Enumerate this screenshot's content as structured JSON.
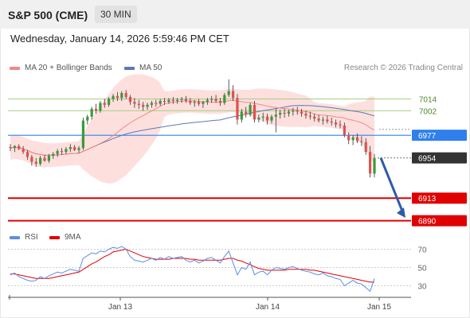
{
  "header": {
    "title": "S&P 500 (CME)",
    "timeframe": "30 MIN",
    "timestamp": "Wednesday, January 14, 2026 5:59:46 PM CET"
  },
  "legend": {
    "ma20_label": "MA 20 + Bollinger Bands",
    "ma50_label": "MA 50",
    "rsi_label": "RSI",
    "ma9_label": "9MA",
    "credit": "Research © 2026 Trading Central"
  },
  "colors": {
    "bollinger_fill": "#fde0de",
    "ma20": "#f08a84",
    "ma50": "#5b78b8",
    "up": "#3a9a3a",
    "down": "#e05050",
    "resistance": "#a6cc80",
    "pivot": "#2f80ed",
    "support": "#e00000",
    "last": "#333333",
    "arrow": "#2e5aa8",
    "rsi": "#5b8ee6",
    "rsi_ma": "#e00000"
  },
  "chart_data": [
    {
      "type": "candlestick",
      "ylim": [
        6880,
        7050
      ],
      "x_ticks": [
        "Jan 13",
        "Jan 14",
        "Jan 15"
      ],
      "levels": [
        {
          "value": 7014,
          "label": "7014",
          "kind": "resistance"
        },
        {
          "value": 7002,
          "label": "7002",
          "kind": "resistance"
        },
        {
          "value": 6977,
          "label": "6977",
          "kind": "pivot"
        },
        {
          "value": 6954,
          "label": "6954",
          "kind": "last"
        },
        {
          "value": 6913,
          "label": "6913",
          "kind": "support"
        },
        {
          "value": 6890,
          "label": "6890",
          "kind": "support"
        }
      ],
      "ohlc": [
        [
          6965,
          6968,
          6961,
          6964
        ],
        [
          6964,
          6967,
          6960,
          6966
        ],
        [
          6966,
          6968,
          6962,
          6963
        ],
        [
          6963,
          6966,
          6958,
          6960
        ],
        [
          6960,
          6962,
          6952,
          6955
        ],
        [
          6955,
          6957,
          6946,
          6950
        ],
        [
          6950,
          6954,
          6945,
          6948
        ],
        [
          6948,
          6956,
          6946,
          6954
        ],
        [
          6954,
          6957,
          6950,
          6951
        ],
        [
          6951,
          6958,
          6949,
          6956
        ],
        [
          6956,
          6960,
          6953,
          6958
        ],
        [
          6958,
          6963,
          6955,
          6961
        ],
        [
          6961,
          6964,
          6957,
          6960
        ],
        [
          6960,
          6965,
          6958,
          6963
        ],
        [
          6963,
          6968,
          6960,
          6965
        ],
        [
          6965,
          6967,
          6961,
          6962
        ],
        [
          6962,
          6966,
          6959,
          6964
        ],
        [
          6964,
          6995,
          6962,
          6992
        ],
        [
          6992,
          6998,
          6988,
          6996
        ],
        [
          6996,
          7006,
          6993,
          7004
        ],
        [
          7004,
          7009,
          6999,
          7002
        ],
        [
          7002,
          7012,
          7000,
          7010
        ],
        [
          7010,
          7014,
          7005,
          7008
        ],
        [
          7008,
          7016,
          7006,
          7014
        ],
        [
          7014,
          7019,
          7011,
          7017
        ],
        [
          7017,
          7021,
          7012,
          7015
        ],
        [
          7015,
          7022,
          7012,
          7020
        ],
        [
          7020,
          7023,
          7014,
          7016
        ],
        [
          7016,
          7018,
          7008,
          7011
        ],
        [
          7011,
          7015,
          7005,
          7009
        ],
        [
          7009,
          7013,
          7004,
          7008
        ],
        [
          7008,
          7011,
          7002,
          7006
        ],
        [
          7006,
          7010,
          7003,
          7008
        ],
        [
          7008,
          7012,
          7005,
          7010
        ],
        [
          7010,
          7013,
          7006,
          7009
        ],
        [
          7009,
          7014,
          7007,
          7012
        ],
        [
          7012,
          7015,
          7008,
          7011
        ],
        [
          7011,
          7015,
          7009,
          7013
        ],
        [
          7013,
          7016,
          7009,
          7012
        ],
        [
          7012,
          7015,
          7009,
          7013
        ],
        [
          7013,
          7016,
          7010,
          7014
        ],
        [
          7014,
          7017,
          7010,
          7012
        ],
        [
          7012,
          7015,
          7008,
          7010
        ],
        [
          7010,
          7013,
          7006,
          7011
        ],
        [
          7011,
          7014,
          7007,
          7009
        ],
        [
          7009,
          7012,
          7005,
          7011
        ],
        [
          7011,
          7015,
          7008,
          7013
        ],
        [
          7013,
          7017,
          7010,
          7014
        ],
        [
          7014,
          7018,
          7010,
          7012
        ],
        [
          7012,
          7015,
          7007,
          7010
        ],
        [
          7010,
          7020,
          7008,
          7018
        ],
        [
          7018,
          7034,
          7016,
          7022
        ],
        [
          7022,
          7028,
          7012,
          7015
        ],
        [
          7015,
          7019,
          6988,
          6993
        ],
        [
          6993,
          7004,
          6990,
          7001
        ],
        [
          7001,
          7006,
          6995,
          6998
        ],
        [
          6998,
          7010,
          6996,
          7008
        ],
        [
          7008,
          7012,
          6990,
          6993
        ],
        [
          6993,
          6998,
          6990,
          6995
        ],
        [
          6995,
          7000,
          6991,
          6996
        ],
        [
          6996,
          6999,
          6988,
          6992
        ],
        [
          6992,
          6998,
          6989,
          6996
        ],
        [
          6996,
          7004,
          6980,
          6998
        ],
        [
          6998,
          7003,
          6994,
          7000
        ],
        [
          7000,
          7004,
          6995,
          6999
        ],
        [
          6999,
          7003,
          6996,
          7001
        ],
        [
          7001,
          7005,
          6997,
          7002
        ],
        [
          7002,
          7006,
          6998,
          7001
        ],
        [
          7001,
          7004,
          6996,
          6999
        ],
        [
          6999,
          7002,
          6994,
          6997
        ],
        [
          6997,
          7001,
          6993,
          6996
        ],
        [
          6996,
          6999,
          6991,
          6994
        ],
        [
          6994,
          6998,
          6990,
          6992
        ],
        [
          6992,
          6996,
          6988,
          6993
        ],
        [
          6993,
          6997,
          6989,
          6991
        ],
        [
          6991,
          6995,
          6987,
          6990
        ],
        [
          6990,
          6993,
          6985,
          6988
        ],
        [
          6988,
          6992,
          6984,
          6987
        ],
        [
          6987,
          6990,
          6975,
          6977
        ],
        [
          6977,
          6980,
          6968,
          6972
        ],
        [
          6972,
          6977,
          6967,
          6975
        ],
        [
          6975,
          6979,
          6969,
          6971
        ],
        [
          6971,
          6976,
          6966,
          6970
        ],
        [
          6970,
          6974,
          6957,
          6960
        ],
        [
          6960,
          6966,
          6934,
          6938
        ],
        [
          6938,
          6958,
          6934,
          6954
        ]
      ]
    },
    {
      "type": "line",
      "name": "RSI",
      "ylim": [
        20,
        80
      ],
      "y_ticks": [
        70,
        50,
        30
      ],
      "x_ticks": [
        "Jan 13",
        "Jan 14",
        "Jan 15"
      ],
      "series": [
        {
          "name": "RSI",
          "values": [
            42,
            44,
            40,
            38,
            36,
            35,
            36,
            40,
            38,
            41,
            43,
            45,
            44,
            46,
            48,
            47,
            46,
            60,
            63,
            66,
            65,
            68,
            67,
            70,
            72,
            71,
            73,
            70,
            62,
            58,
            57,
            56,
            58,
            60,
            58,
            61,
            59,
            62,
            60,
            61,
            62,
            58,
            56,
            58,
            55,
            57,
            60,
            61,
            58,
            55,
            62,
            68,
            55,
            42,
            50,
            48,
            56,
            42,
            45,
            46,
            42,
            47,
            50,
            49,
            48,
            50,
            51,
            49,
            47,
            46,
            45,
            43,
            42,
            44,
            41,
            40,
            38,
            37,
            30,
            33,
            36,
            33,
            32,
            28,
            24,
            38
          ]
        },
        {
          "name": "9MA",
          "values": [
            43,
            43,
            42,
            41,
            40,
            39,
            38,
            38,
            38,
            38,
            39,
            40,
            41,
            42,
            43,
            44,
            45,
            48,
            51,
            54,
            56,
            59,
            62,
            64,
            67,
            68,
            69,
            70,
            68,
            66,
            64,
            62,
            61,
            60,
            59,
            59,
            59,
            59,
            60,
            60,
            60,
            60,
            59,
            59,
            58,
            58,
            58,
            58,
            58,
            58,
            59,
            60,
            60,
            58,
            57,
            55,
            53,
            51,
            49,
            48,
            47,
            47,
            47,
            47,
            47,
            48,
            48,
            48,
            48,
            48,
            47,
            47,
            46,
            45,
            44,
            43,
            42,
            41,
            40,
            39,
            38,
            37,
            36,
            35,
            34,
            34
          ]
        }
      ]
    }
  ]
}
